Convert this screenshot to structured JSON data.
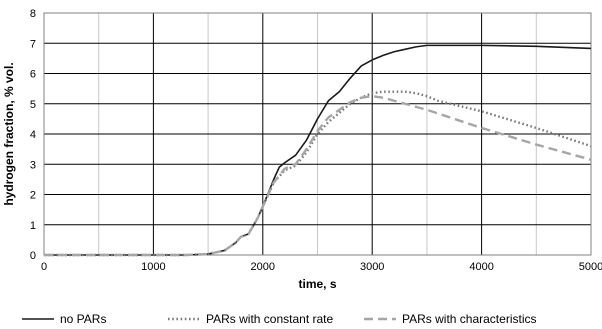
{
  "chart_data": {
    "type": "line",
    "xlabel": "time, s",
    "ylabel": "hydrogen fraction, % vol.",
    "xlim": [
      0,
      5000
    ],
    "ylim": [
      0,
      8
    ],
    "x_ticks": [
      0,
      1000,
      2000,
      3000,
      4000,
      5000
    ],
    "y_ticks": [
      0,
      1,
      2,
      3,
      4,
      5,
      6,
      7,
      8
    ],
    "x_tick_labels": [
      "0",
      "1000",
      "2000",
      "3000",
      "4000",
      "5000"
    ],
    "y_tick_labels": [
      "0",
      "1",
      "2",
      "3",
      "4",
      "5",
      "6",
      "7",
      "8"
    ],
    "grid": true,
    "legend_position": "bottom",
    "series": [
      {
        "name": "no PARs",
        "color": "#1a1a1a",
        "style": "solid",
        "points": [
          [
            0,
            0
          ],
          [
            1000,
            0
          ],
          [
            1300,
            0
          ],
          [
            1500,
            0.03
          ],
          [
            1650,
            0.15
          ],
          [
            1750,
            0.4
          ],
          [
            1800,
            0.6
          ],
          [
            1870,
            0.7
          ],
          [
            1950,
            1.2
          ],
          [
            2000,
            1.6
          ],
          [
            2100,
            2.5
          ],
          [
            2150,
            2.9
          ],
          [
            2200,
            3.05
          ],
          [
            2300,
            3.3
          ],
          [
            2400,
            3.8
          ],
          [
            2500,
            4.5
          ],
          [
            2600,
            5.1
          ],
          [
            2700,
            5.4
          ],
          [
            2800,
            5.85
          ],
          [
            2900,
            6.25
          ],
          [
            3000,
            6.45
          ],
          [
            3100,
            6.6
          ],
          [
            3200,
            6.72
          ],
          [
            3300,
            6.8
          ],
          [
            3400,
            6.88
          ],
          [
            3500,
            6.93
          ],
          [
            3700,
            6.93
          ],
          [
            4000,
            6.93
          ],
          [
            4500,
            6.9
          ],
          [
            5000,
            6.83
          ]
        ]
      },
      {
        "name": "PARs with constant rate",
        "color": "#7a7a7a",
        "style": "dotted",
        "points": [
          [
            0,
            0
          ],
          [
            1000,
            0
          ],
          [
            1300,
            0
          ],
          [
            1500,
            0.03
          ],
          [
            1650,
            0.15
          ],
          [
            1750,
            0.4
          ],
          [
            1800,
            0.6
          ],
          [
            1870,
            0.7
          ],
          [
            1950,
            1.2
          ],
          [
            2000,
            1.6
          ],
          [
            2100,
            2.4
          ],
          [
            2200,
            2.8
          ],
          [
            2300,
            2.95
          ],
          [
            2400,
            3.4
          ],
          [
            2500,
            4.0
          ],
          [
            2600,
            4.4
          ],
          [
            2700,
            4.7
          ],
          [
            2800,
            5.0
          ],
          [
            2900,
            5.2
          ],
          [
            3000,
            5.35
          ],
          [
            3100,
            5.4
          ],
          [
            3300,
            5.4
          ],
          [
            3400,
            5.35
          ],
          [
            3500,
            5.25
          ],
          [
            3600,
            5.1
          ],
          [
            4000,
            4.75
          ],
          [
            4500,
            4.2
          ],
          [
            5000,
            3.6
          ]
        ]
      },
      {
        "name": "PARs with characteristics",
        "color": "#a6a6a6",
        "style": "dashed",
        "points": [
          [
            0,
            0
          ],
          [
            1000,
            0
          ],
          [
            1300,
            0
          ],
          [
            1500,
            0.03
          ],
          [
            1650,
            0.15
          ],
          [
            1750,
            0.4
          ],
          [
            1800,
            0.6
          ],
          [
            1870,
            0.7
          ],
          [
            1950,
            1.2
          ],
          [
            2000,
            1.6
          ],
          [
            2100,
            2.4
          ],
          [
            2200,
            2.85
          ],
          [
            2300,
            3.0
          ],
          [
            2400,
            3.5
          ],
          [
            2500,
            4.1
          ],
          [
            2600,
            4.55
          ],
          [
            2700,
            4.8
          ],
          [
            2800,
            5.05
          ],
          [
            2900,
            5.2
          ],
          [
            3000,
            5.25
          ],
          [
            3100,
            5.2
          ],
          [
            3200,
            5.1
          ],
          [
            3300,
            5.0
          ],
          [
            3500,
            4.8
          ],
          [
            4000,
            4.2
          ],
          [
            4500,
            3.65
          ],
          [
            5000,
            3.15
          ]
        ]
      }
    ]
  }
}
